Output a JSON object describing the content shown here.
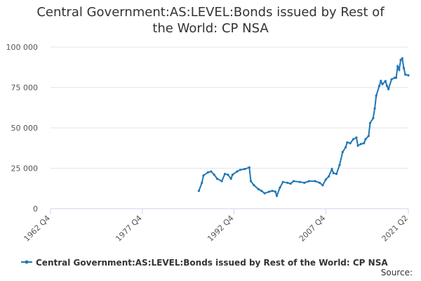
{
  "chart_data": {
    "type": "line",
    "title": "Central Government:AS:LEVEL:Bonds issued by Rest of the World: CP NSA",
    "source": "Source:",
    "xlim": [
      1962.75,
      2021.25
    ],
    "xticks": [
      {
        "value": 1962.75,
        "label": "1962 Q4"
      },
      {
        "value": 1977.75,
        "label": "1977 Q4"
      },
      {
        "value": 1992.75,
        "label": "1992 Q4"
      },
      {
        "value": 2007.75,
        "label": "2007 Q4"
      },
      {
        "value": 2021.25,
        "label": "2021 Q2"
      }
    ],
    "ylim": [
      0,
      100000
    ],
    "yticks": [
      0,
      {
        "value": 25000,
        "label": "25 000"
      },
      {
        "value": 50000,
        "label": "50 000"
      },
      {
        "value": 75000,
        "label": "75 000"
      },
      {
        "value": 100000,
        "label": "100 000"
      }
    ],
    "grid": true,
    "x": [
      1987.0,
      1987.5,
      1987.75,
      1988.5,
      1989.0,
      1989.5,
      1990.0,
      1990.75,
      1991.25,
      1991.75,
      1992.25,
      1992.5,
      1993.25,
      1993.75,
      1994.5,
      1995.25,
      1995.5,
      1996.0,
      1996.75,
      1997.25,
      1997.75,
      1998.5,
      1999.0,
      1999.5,
      1999.75,
      2000.25,
      2000.75,
      2001.5,
      2002.0,
      2002.5,
      2003.5,
      2004.25,
      2005.0,
      2006.0,
      2006.75,
      2007.25,
      2007.75,
      2008.25,
      2008.75,
      2009.0,
      2009.5,
      2010.0,
      2010.5,
      2011.0,
      2011.25,
      2011.75,
      2012.25,
      2012.75,
      2013.0,
      2013.5,
      2014.0,
      2014.25,
      2014.75,
      2015.0,
      2015.5,
      2015.75,
      2016.0,
      2016.5,
      2016.75,
      2017.0,
      2017.5,
      2017.75,
      2018.0,
      2018.5,
      2019.0,
      2019.25,
      2019.5,
      2019.75,
      2020.0,
      2020.25,
      2020.5,
      2020.75,
      2021.25
    ],
    "series": [
      {
        "name": "Central Government:AS:LEVEL:Bonds issued by Rest of the World: CP NSA",
        "color": "#1f77b4",
        "values": [
          11000,
          16000,
          20500,
          22500,
          23000,
          21000,
          18500,
          17000,
          21500,
          21000,
          18500,
          21000,
          23000,
          24000,
          24500,
          25500,
          17000,
          14500,
          12000,
          11000,
          9500,
          10500,
          11000,
          10500,
          8000,
          13000,
          16500,
          16000,
          15500,
          17000,
          16500,
          16000,
          17000,
          17000,
          16000,
          14500,
          18000,
          20000,
          24500,
          22000,
          21500,
          27000,
          35000,
          38000,
          41000,
          40500,
          43000,
          44000,
          39000,
          40000,
          40500,
          43000,
          45000,
          53000,
          56000,
          62000,
          70000,
          76000,
          79000,
          77000,
          79000,
          76000,
          74000,
          80000,
          81000,
          81000,
          88000,
          86000,
          92000,
          93000,
          87000,
          83000,
          82500
        ]
      }
    ]
  }
}
